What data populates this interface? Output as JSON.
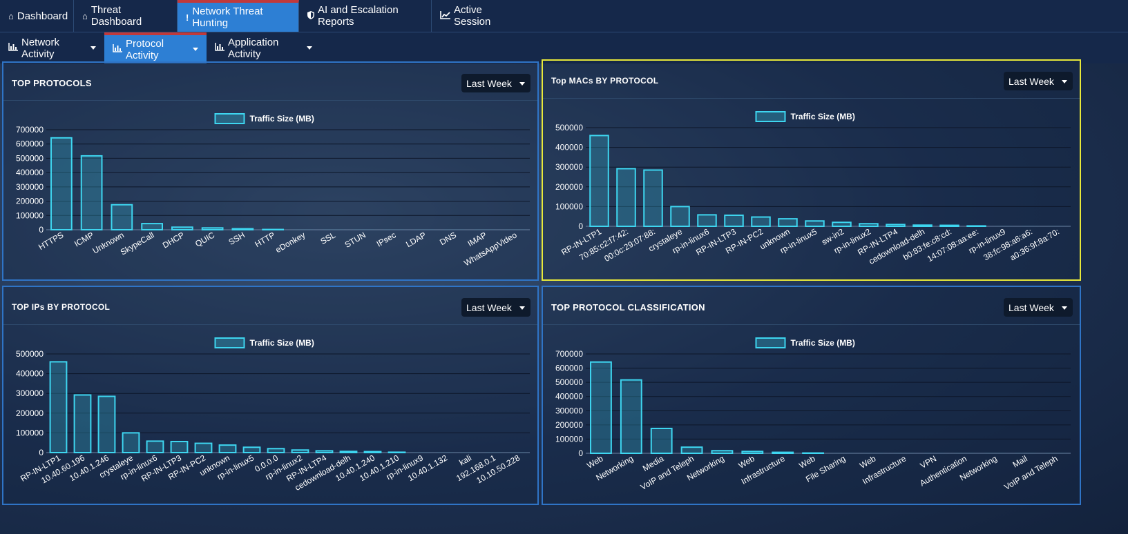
{
  "nav": {
    "tabs": [
      {
        "label": "Dashboard",
        "icon": "home-icon"
      },
      {
        "label": "Threat Dashboard",
        "icon": "home-icon"
      },
      {
        "label": "Network Threat Hunting",
        "icon": "exclamation-icon"
      },
      {
        "label": "AI and Escalation Reports",
        "icon": "shield-icon"
      },
      {
        "label": "Active Session",
        "icon": "line-chart-icon"
      }
    ],
    "subtabs": [
      {
        "label": "Network Activity",
        "icon": "bar-chart-icon"
      },
      {
        "label": "Protocol Activity",
        "icon": "bar-chart-icon"
      },
      {
        "label": "Application Activity",
        "icon": "bar-chart-icon"
      }
    ]
  },
  "colors": {
    "accent": "#2d7fd4",
    "active_border": "#c0393b",
    "bar_stroke": "#3ed6f0",
    "highlight": "#e8e83a"
  },
  "panels": [
    {
      "title": "TOP PROTOCOLS",
      "period": "Last Week"
    },
    {
      "title": "Top MACs BY PROTOCOL",
      "period": "Last Week"
    },
    {
      "title": "TOP IPs BY PROTOCOL",
      "period": "Last Week"
    },
    {
      "title": "TOP PROTOCOL CLASSIFICATION",
      "period": "Last Week"
    }
  ],
  "chart_data": [
    {
      "type": "bar",
      "legend": "Traffic Size (MB)",
      "ylim": [
        0,
        700000
      ],
      "yticks": [
        0,
        100000,
        200000,
        300000,
        400000,
        500000,
        600000,
        700000
      ],
      "categories": [
        "HTTPS",
        "ICMP",
        "Unknown",
        "SkypeCall",
        "DHCP",
        "QUIC",
        "SSH",
        "HTTP",
        "eDonkey",
        "SSL",
        "STUN",
        "IPsec",
        "LDAP",
        "DNS",
        "IMAP",
        "WhatsAppVideo"
      ],
      "values": [
        643000,
        517000,
        175000,
        43000,
        18000,
        13000,
        7000,
        2000,
        500,
        200,
        100,
        100,
        0,
        0,
        0,
        0
      ]
    },
    {
      "type": "bar",
      "legend": "Traffic Size (MB)",
      "ylim": [
        0,
        500000
      ],
      "yticks": [
        0,
        100000,
        200000,
        300000,
        400000,
        500000
      ],
      "categories": [
        "RP-IN-LTP1",
        "70:85:c2:f7:42:",
        "00:0c:29:07:88:",
        "crystaleye",
        "rp-in-linux6",
        "RP-IN-LTP3",
        "RP-IN-PC2",
        "unknown",
        "rp-in-linux5",
        "sw-in2",
        "rp-in-linux2",
        "RP-IN-LTP4",
        "cedownload-delh",
        "b0:83:fe:c8:cd:",
        "14:07:08:aa:ee:",
        "rp-in-linux9",
        "38:fc:98:a6:a6:",
        "a0:36:9f:8a:70:"
      ],
      "values": [
        460000,
        292000,
        285000,
        100000,
        58000,
        56000,
        47000,
        38000,
        27000,
        20000,
        13000,
        9000,
        6000,
        5000,
        2000,
        500,
        200,
        100
      ]
    },
    {
      "type": "bar",
      "legend": "Traffic Size (MB)",
      "ylim": [
        0,
        500000
      ],
      "yticks": [
        0,
        100000,
        200000,
        300000,
        400000,
        500000
      ],
      "categories": [
        "RP-IN-LTP1",
        "10.40.60.196",
        "10.40.1.246",
        "crystaleye",
        "rp-in-linux6",
        "RP-IN-LTP3",
        "RP-IN-PC2",
        "unknown",
        "rp-in-linux5",
        "0.0.0.0",
        "rp-in-linux2",
        "RP-IN-LTP4",
        "cedownload-delh",
        "10.40.1.240",
        "10.40.1.210",
        "rp-in-linux9",
        "10.40.1.132",
        "kali",
        "192.168.0.1",
        "10.10.50.228"
      ],
      "values": [
        460000,
        292000,
        285000,
        100000,
        58000,
        56000,
        47000,
        38000,
        27000,
        20000,
        13000,
        9000,
        6000,
        5000,
        2000,
        500,
        200,
        100,
        0,
        0
      ]
    },
    {
      "type": "bar",
      "legend": "Traffic Size (MB)",
      "ylim": [
        0,
        700000
      ],
      "yticks": [
        0,
        100000,
        200000,
        300000,
        400000,
        500000,
        600000,
        700000
      ],
      "categories": [
        "Web",
        "Networking",
        "Media",
        "VoIP and Teleph",
        "Networking",
        "Web",
        "Infrastructure",
        "Web",
        "File Sharing",
        "Web",
        "Infrastructure",
        "VPN",
        "Authentication",
        "Networking",
        "Mail",
        "VoIP and Teleph"
      ],
      "values": [
        643000,
        517000,
        175000,
        43000,
        18000,
        13000,
        7000,
        2000,
        500,
        200,
        100,
        100,
        0,
        0,
        0,
        0
      ]
    }
  ]
}
